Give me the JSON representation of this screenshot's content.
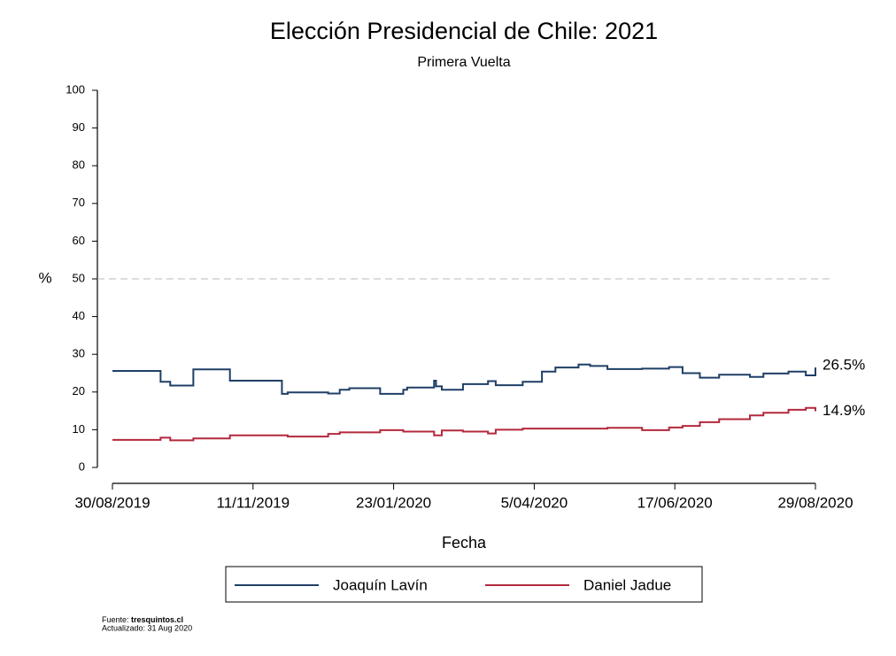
{
  "chart_data": {
    "type": "line",
    "step": true,
    "title": "Elección Presidencial de Chile: 2021",
    "subtitle": "Primera Vuelta",
    "x_label": "Fecha",
    "y_label": "%",
    "x": [
      "2019-08-30",
      "2019-09-24",
      "2019-09-29",
      "2019-10-11",
      "2019-10-30",
      "2019-11-26",
      "2019-11-29",
      "2019-12-20",
      "2019-12-26",
      "2019-12-31",
      "2020-01-16",
      "2020-01-28",
      "2020-01-30",
      "2020-02-13",
      "2020-02-14",
      "2020-02-17",
      "2020-02-28",
      "2020-03-12",
      "2020-03-16",
      "2020-03-30",
      "2020-04-09",
      "2020-04-16",
      "2020-04-28",
      "2020-05-04",
      "2020-05-13",
      "2020-05-31",
      "2020-06-14",
      "2020-06-21",
      "2020-06-30",
      "2020-07-10",
      "2020-07-26",
      "2020-08-02",
      "2020-08-15",
      "2020-08-24",
      "2020-08-29"
    ],
    "series": [
      {
        "name": "Joaquín Lavín",
        "color": "#1f3f66",
        "last_label": "26.5%",
        "values": [
          25.6,
          22.7,
          21.7,
          26.0,
          23.0,
          19.5,
          19.9,
          19.6,
          20.6,
          21.0,
          19.5,
          20.6,
          21.2,
          23.0,
          21.5,
          20.6,
          22.1,
          22.9,
          21.8,
          22.7,
          25.4,
          26.5,
          27.3,
          26.9,
          26.1,
          26.2,
          26.6,
          25.0,
          23.8,
          24.6,
          24.0,
          24.9,
          25.4,
          24.4,
          26.5
        ]
      },
      {
        "name": "Daniel Jadue",
        "color": "#b3283c",
        "last_label": "14.9%",
        "values": [
          7.3,
          7.9,
          7.2,
          7.7,
          8.5,
          8.5,
          8.2,
          8.9,
          9.3,
          9.3,
          9.9,
          9.5,
          9.5,
          8.5,
          8.5,
          9.8,
          9.5,
          9.0,
          10.0,
          10.3,
          10.3,
          10.3,
          10.3,
          10.3,
          10.5,
          9.9,
          10.6,
          11.0,
          12.0,
          12.8,
          13.8,
          14.5,
          15.3,
          15.8,
          14.9
        ]
      }
    ],
    "xlim": [
      "2019-08-30",
      "2020-08-29"
    ],
    "xticks": [
      {
        "value": "2019-08-30",
        "label": "30/08/2019"
      },
      {
        "value": "2019-11-11",
        "label": "11/11/2019"
      },
      {
        "value": "2020-01-23",
        "label": "23/01/2020"
      },
      {
        "value": "2020-04-05",
        "label": "5/04/2020"
      },
      {
        "value": "2020-06-17",
        "label": "17/06/2020"
      },
      {
        "value": "2020-08-29",
        "label": "29/08/2020"
      }
    ],
    "ylim": [
      0,
      100
    ],
    "yticks": [
      0,
      10,
      20,
      30,
      40,
      50,
      60,
      70,
      80,
      90,
      100
    ],
    "reference_line": 50,
    "source_label": "Fuente:",
    "source": "tresquintos.cl",
    "updated": "Actualizado: 31 Aug 2020"
  }
}
